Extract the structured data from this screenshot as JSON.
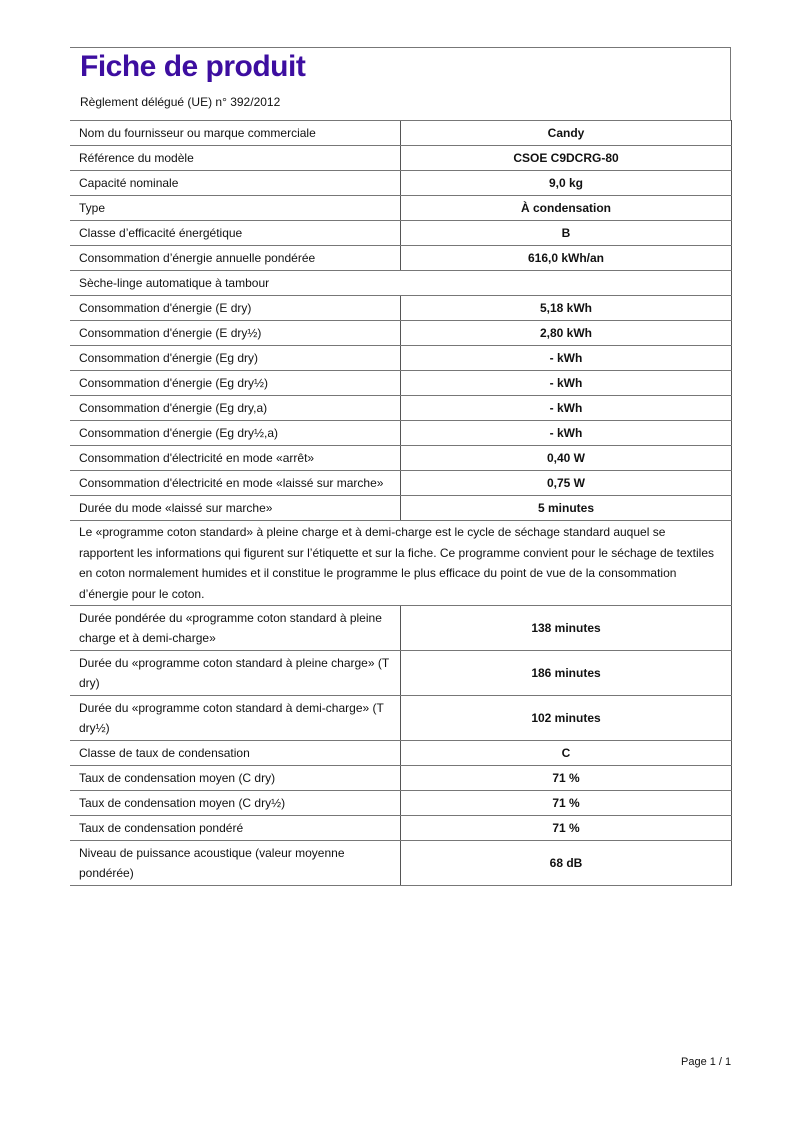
{
  "title": "Fiche de produit",
  "subtitle": "Règlement délégué (UE) n° 392/2012",
  "rows_a": [
    {
      "label": "Nom du fournisseur ou marque commerciale",
      "value": "Candy"
    },
    {
      "label": "Référence du modèle",
      "value": "CSOE C9DCRG-80"
    },
    {
      "label": "Capacité nominale",
      "value": "9,0 kg"
    },
    {
      "label": "Type",
      "value": "À condensation"
    },
    {
      "label": "Classe d’efficacité énergétique",
      "value": "B"
    },
    {
      "label": "Consommation d’énergie annuelle pondérée",
      "value": "616,0 kWh/an"
    }
  ],
  "section": "Sèche-linge automatique à tambour",
  "rows_b": [
    {
      "label": "Consommation d'énergie (E dry)",
      "value": "5,18 kWh"
    },
    {
      "label": "Consommation d'énergie (E dry½)",
      "value": "2,80 kWh"
    },
    {
      "label": "Consommation d'énergie (Eg dry)",
      "value": "- kWh"
    },
    {
      "label": "Consommation d'énergie (Eg dry½)",
      "value": "- kWh"
    },
    {
      "label": "Consommation d'énergie (Eg dry,a)",
      "value": "- kWh"
    },
    {
      "label": "Consommation d'énergie (Eg dry½,a)",
      "value": "- kWh"
    },
    {
      "label": "Consommation d'électricité en mode «arrêt»",
      "value": "0,40 W"
    },
    {
      "label": "Consommation d'électricité en mode «laissé sur marche»",
      "value": "0,75 W"
    },
    {
      "label": "Durée du mode «laissé sur marche»",
      "value": "5 minutes"
    }
  ],
  "paragraph": "Le «programme coton standard» à pleine charge et à demi-charge est le cycle de séchage standard auquel se rapportent les informations qui figurent sur l’étiquette et sur la fiche. Ce programme convient pour le séchage de textiles en coton normalement humides et il constitue le programme le plus efficace du point de vue de la consommation d’énergie pour le coton.",
  "rows_c": [
    {
      "label": "Durée pondérée du «programme coton standard à pleine charge et à demi-charge»",
      "value": "138 minutes"
    },
    {
      "label": "Durée du «programme coton standard à pleine charge» (T dry)",
      "value": "186 minutes"
    },
    {
      "label": "Durée du «programme coton standard à demi-charge» (T dry½)",
      "value": "102 minutes"
    },
    {
      "label": "Classe de taux de condensation",
      "value": "C"
    },
    {
      "label": "Taux de condensation moyen (C dry)",
      "value": "71 %"
    },
    {
      "label": "Taux de condensation moyen (C dry½)",
      "value": "71 %"
    },
    {
      "label": "Taux de condensation pondéré",
      "value": "71 %"
    },
    {
      "label": "Niveau de puissance acoustique (valeur moyenne pondérée)",
      "value": "68 dB"
    }
  ],
  "footer": "Page 1 / 1",
  "colors": {
    "title": "#3d0ea0"
  }
}
